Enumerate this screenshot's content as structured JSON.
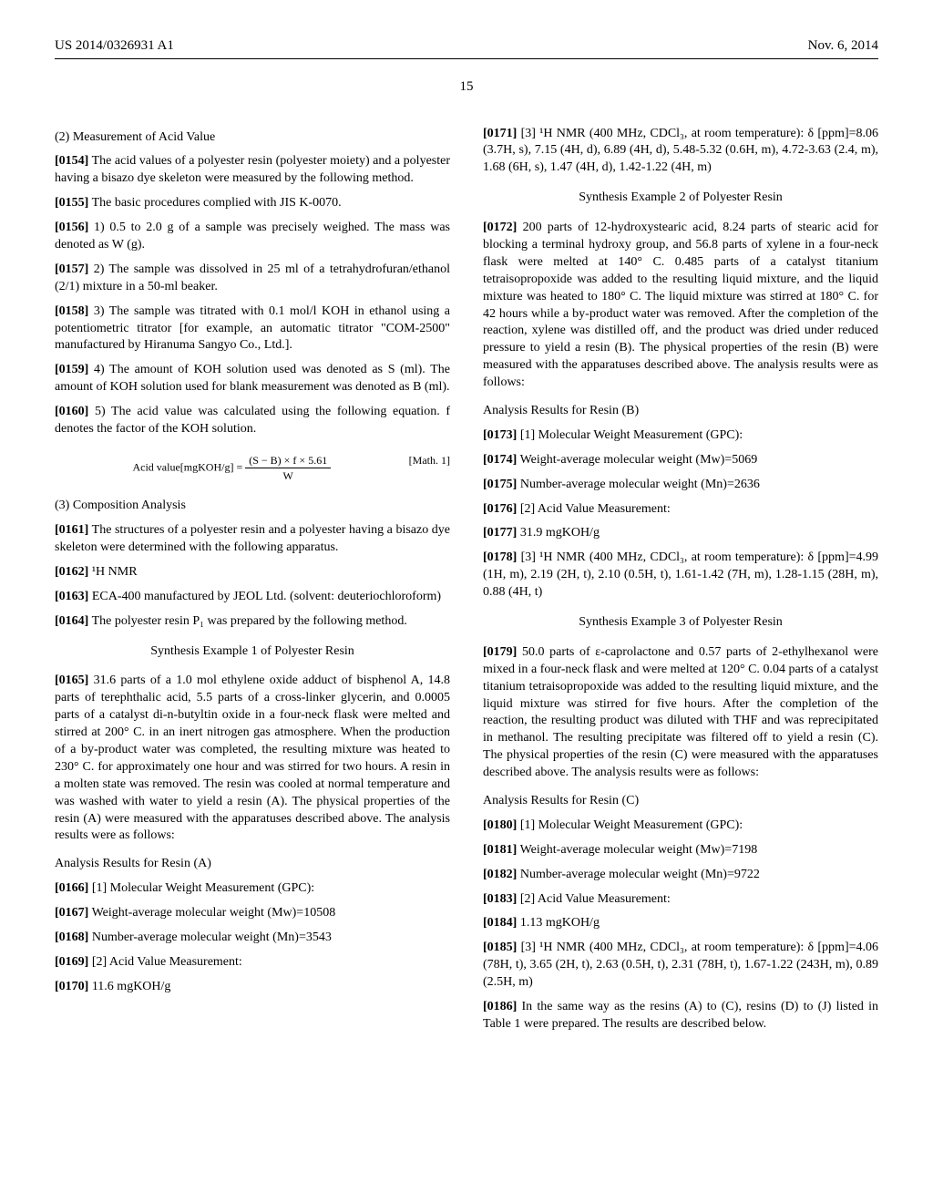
{
  "header": {
    "pub_no": "US 2014/0326931 A1",
    "date": "Nov. 6, 2014",
    "page_no": "15"
  },
  "left": {
    "h2_1": "(2) Measurement of Acid Value",
    "p0154_num": "[0154]",
    "p0154": "The acid values of a polyester resin (polyester moiety) and a polyester having a bisazo dye skeleton were measured by the following method.",
    "p0155_num": "[0155]",
    "p0155": "The basic procedures complied with JIS K-0070.",
    "p0156_num": "[0156]",
    "p0156": "1) 0.5 to 2.0 g of a sample was precisely weighed. The mass was denoted as W (g).",
    "p0157_num": "[0157]",
    "p0157": "2) The sample was dissolved in 25 ml of a tetrahydrofuran/ethanol (2/1) mixture in a 50-ml beaker.",
    "p0158_num": "[0158]",
    "p0158": "3) The sample was titrated with 0.1 mol/l KOH in ethanol using a potentiometric titrator [for example, an automatic titrator \"COM-2500\" manufactured by Hiranuma Sangyo Co., Ltd.].",
    "p0159_num": "[0159]",
    "p0159": "4) The amount of KOH solution used was denoted as S (ml). The amount of KOH solution used for blank measurement was denoted as B (ml).",
    "p0160_num": "[0160]",
    "p0160": "5) The acid value was calculated using the following equation. f denotes the factor of the KOH solution.",
    "eq_lhs": "Acid value[mgKOH/g] = ",
    "eq_num_text": "(S − B) × f × 5.61",
    "eq_den_text": "W",
    "eq_label": "[Math. 1]",
    "h2_2": "(3) Composition Analysis",
    "p0161_num": "[0161]",
    "p0161": "The structures of a polyester resin and a polyester having a bisazo dye skeleton were determined with the following apparatus.",
    "p0162_num": "[0162]",
    "p0162": "¹H NMR",
    "p0163_num": "[0163]",
    "p0163": "ECA-400 manufactured by JEOL Ltd. (solvent: deuteriochloroform)",
    "p0164_num": "[0164]",
    "p0164": "The polyester resin P₁ was prepared by the following method.",
    "synth1_title": "Synthesis Example 1 of Polyester Resin",
    "p0165_num": "[0165]",
    "p0165": "31.6 parts of a 1.0 mol ethylene oxide adduct of bisphenol A, 14.8 parts of terephthalic acid, 5.5 parts of a cross-linker glycerin, and 0.0005 parts of a catalyst di-n-butyltin oxide in a four-neck flask were melted and stirred at 200° C. in an inert nitrogen gas atmosphere. When the production of a by-product water was completed, the resulting mixture was heated to 230° C. for approximately one hour and was stirred for two hours. A resin in a molten state was removed. The resin was cooled at normal temperature and was washed with water to yield a resin (A). The physical properties of the resin (A) were measured with the apparatuses described above. The analysis results were as follows:",
    "resA_title": "Analysis Results for Resin (A)",
    "p0166_num": "[0166]",
    "p0166": "[1] Molecular Weight Measurement (GPC):",
    "p0167_num": "[0167]",
    "p0167": "Weight-average molecular weight (Mw)=10508",
    "p0168_num": "[0168]",
    "p0168": "Number-average molecular weight (Mn)=3543",
    "p0169_num": "[0169]",
    "p0169": "[2] Acid Value Measurement:",
    "p0170_num": "[0170]",
    "p0170": "11.6 mgKOH/g"
  },
  "right": {
    "p0171_num": "[0171]",
    "p0171": "[3] ¹H NMR (400 MHz, CDCl₃, at room temperature): δ [ppm]=8.06 (3.7H, s), 7.15 (4H, d), 6.89 (4H, d), 5.48-5.32 (0.6H, m), 4.72-3.63 (2.4, m), 1.68 (6H, s), 1.47 (4H, d), 1.42-1.22 (4H, m)",
    "synth2_title": "Synthesis Example 2 of Polyester Resin",
    "p0172_num": "[0172]",
    "p0172": "200 parts of 12-hydroxystearic acid, 8.24 parts of stearic acid for blocking a terminal hydroxy group, and 56.8 parts of xylene in a four-neck flask were melted at 140° C. 0.485 parts of a catalyst titanium tetraisopropoxide was added to the resulting liquid mixture, and the liquid mixture was heated to 180° C. The liquid mixture was stirred at 180° C. for 42 hours while a by-product water was removed. After the completion of the reaction, xylene was distilled off, and the product was dried under reduced pressure to yield a resin (B). The physical properties of the resin (B) were measured with the apparatuses described above. The analysis results were as follows:",
    "resB_title": "Analysis Results for Resin (B)",
    "p0173_num": "[0173]",
    "p0173": "[1] Molecular Weight Measurement (GPC):",
    "p0174_num": "[0174]",
    "p0174": "Weight-average molecular weight (Mw)=5069",
    "p0175_num": "[0175]",
    "p0175": "Number-average molecular weight (Mn)=2636",
    "p0176_num": "[0176]",
    "p0176": "[2] Acid Value Measurement:",
    "p0177_num": "[0177]",
    "p0177": "31.9 mgKOH/g",
    "p0178_num": "[0178]",
    "p0178": "[3] ¹H NMR (400 MHz, CDCl₃, at room temperature): δ [ppm]=4.99 (1H, m), 2.19 (2H, t), 2.10 (0.5H, t), 1.61-1.42 (7H, m), 1.28-1.15 (28H, m), 0.88 (4H, t)",
    "synth3_title": "Synthesis Example 3 of Polyester Resin",
    "p0179_num": "[0179]",
    "p0179": "50.0 parts of ε-caprolactone and 0.57 parts of 2-ethylhexanol were mixed in a four-neck flask and were melted at 120° C. 0.04 parts of a catalyst titanium tetraisopropoxide was added to the resulting liquid mixture, and the liquid mixture was stirred for five hours. After the completion of the reaction, the resulting product was diluted with THF and was reprecipitated in methanol. The resulting precipitate was filtered off to yield a resin (C). The physical properties of the resin (C) were measured with the apparatuses described above. The analysis results were as follows:",
    "resC_title": "Analysis Results for Resin (C)",
    "p0180_num": "[0180]",
    "p0180": "[1] Molecular Weight Measurement (GPC):",
    "p0181_num": "[0181]",
    "p0181": "Weight-average molecular weight (Mw)=7198",
    "p0182_num": "[0182]",
    "p0182": "Number-average molecular weight (Mn)=9722",
    "p0183_num": "[0183]",
    "p0183": "[2] Acid Value Measurement:",
    "p0184_num": "[0184]",
    "p0184": "1.13 mgKOH/g",
    "p0185_num": "[0185]",
    "p0185": "[3] ¹H NMR (400 MHz, CDCl₃, at room temperature): δ [ppm]=4.06 (78H, t), 3.65 (2H, t), 2.63 (0.5H, t), 2.31 (78H, t), 1.67-1.22 (243H, m), 0.89 (2.5H, m)",
    "p0186_num": "[0186]",
    "p0186": "In the same way as the resins (A) to (C), resins (D) to (J) listed in Table 1 were prepared. The results are described below."
  }
}
